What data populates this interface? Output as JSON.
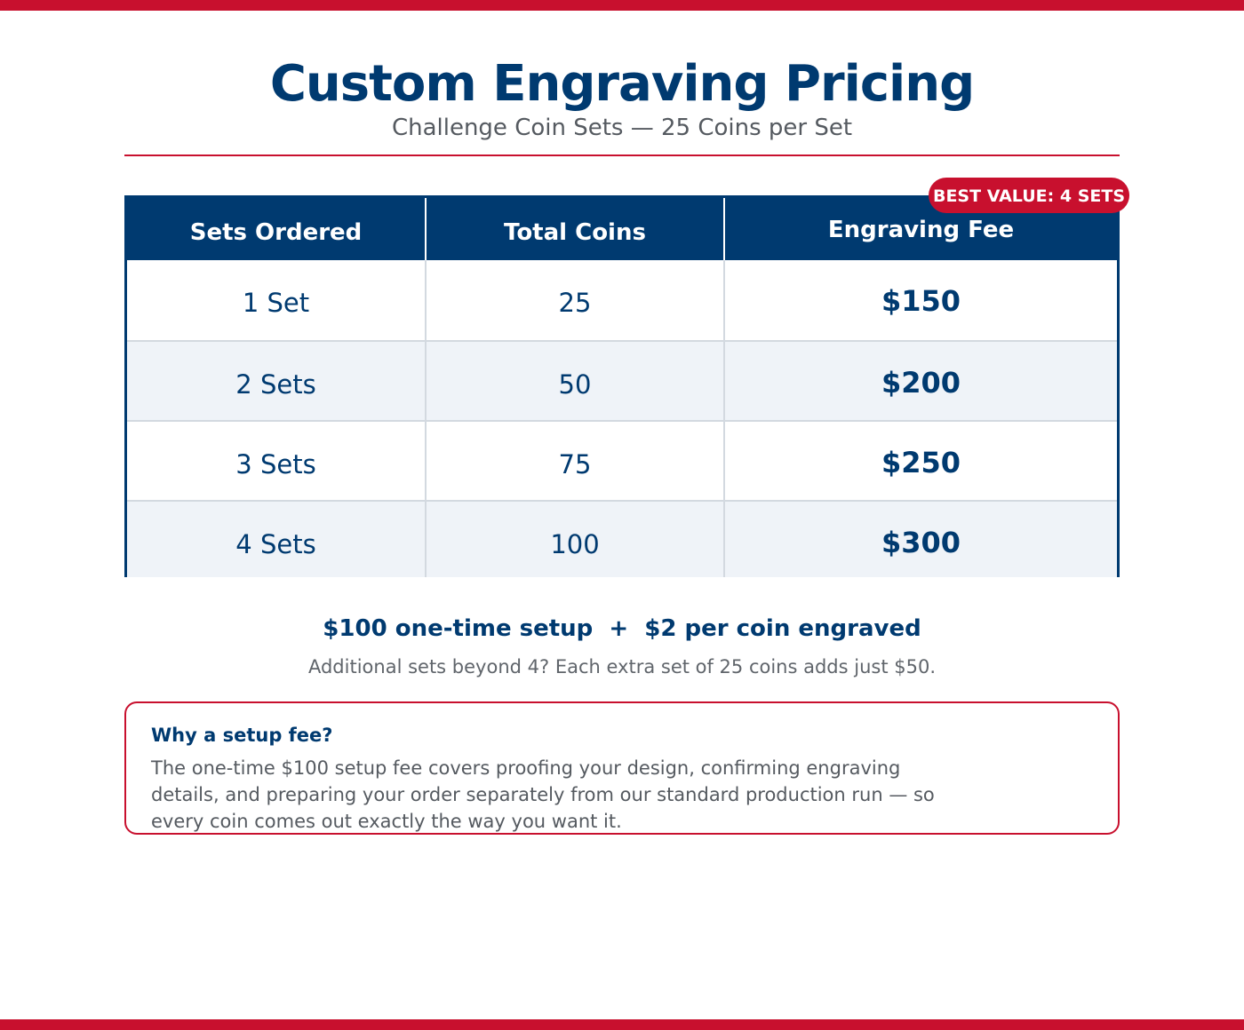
{
  "header": {
    "title": "Custom Engraving Pricing",
    "subtitle": "Challenge Coin Sets — 25 Coins per Set"
  },
  "badge": "BEST VALUE: 4 SETS",
  "table": {
    "columns": [
      "Sets Ordered",
      "Total Coins",
      "Engraving Fee"
    ],
    "rows": [
      {
        "sets": "1 Set",
        "coins": "25",
        "fee": "$150"
      },
      {
        "sets": "2 Sets",
        "coins": "50",
        "fee": "$200"
      },
      {
        "sets": "3 Sets",
        "coins": "75",
        "fee": "$250"
      },
      {
        "sets": "4 Sets",
        "coins": "100",
        "fee": "$300"
      }
    ]
  },
  "formula": "$100 one-time setup  +  $2 per coin engraved",
  "extra_note": "Additional sets beyond 4? Each extra set of 25 coins adds just $50.",
  "callout": {
    "title": "Why a setup fee?",
    "body": "The one-time $100 setup fee covers proofing your design, confirming engraving details, and preparing your order separately from our standard production run — so every coin comes out exactly the way you want it."
  },
  "colors": {
    "brand_red": "#c8102e",
    "brand_navy": "#003a70",
    "row_alt": "#eff3f8"
  }
}
